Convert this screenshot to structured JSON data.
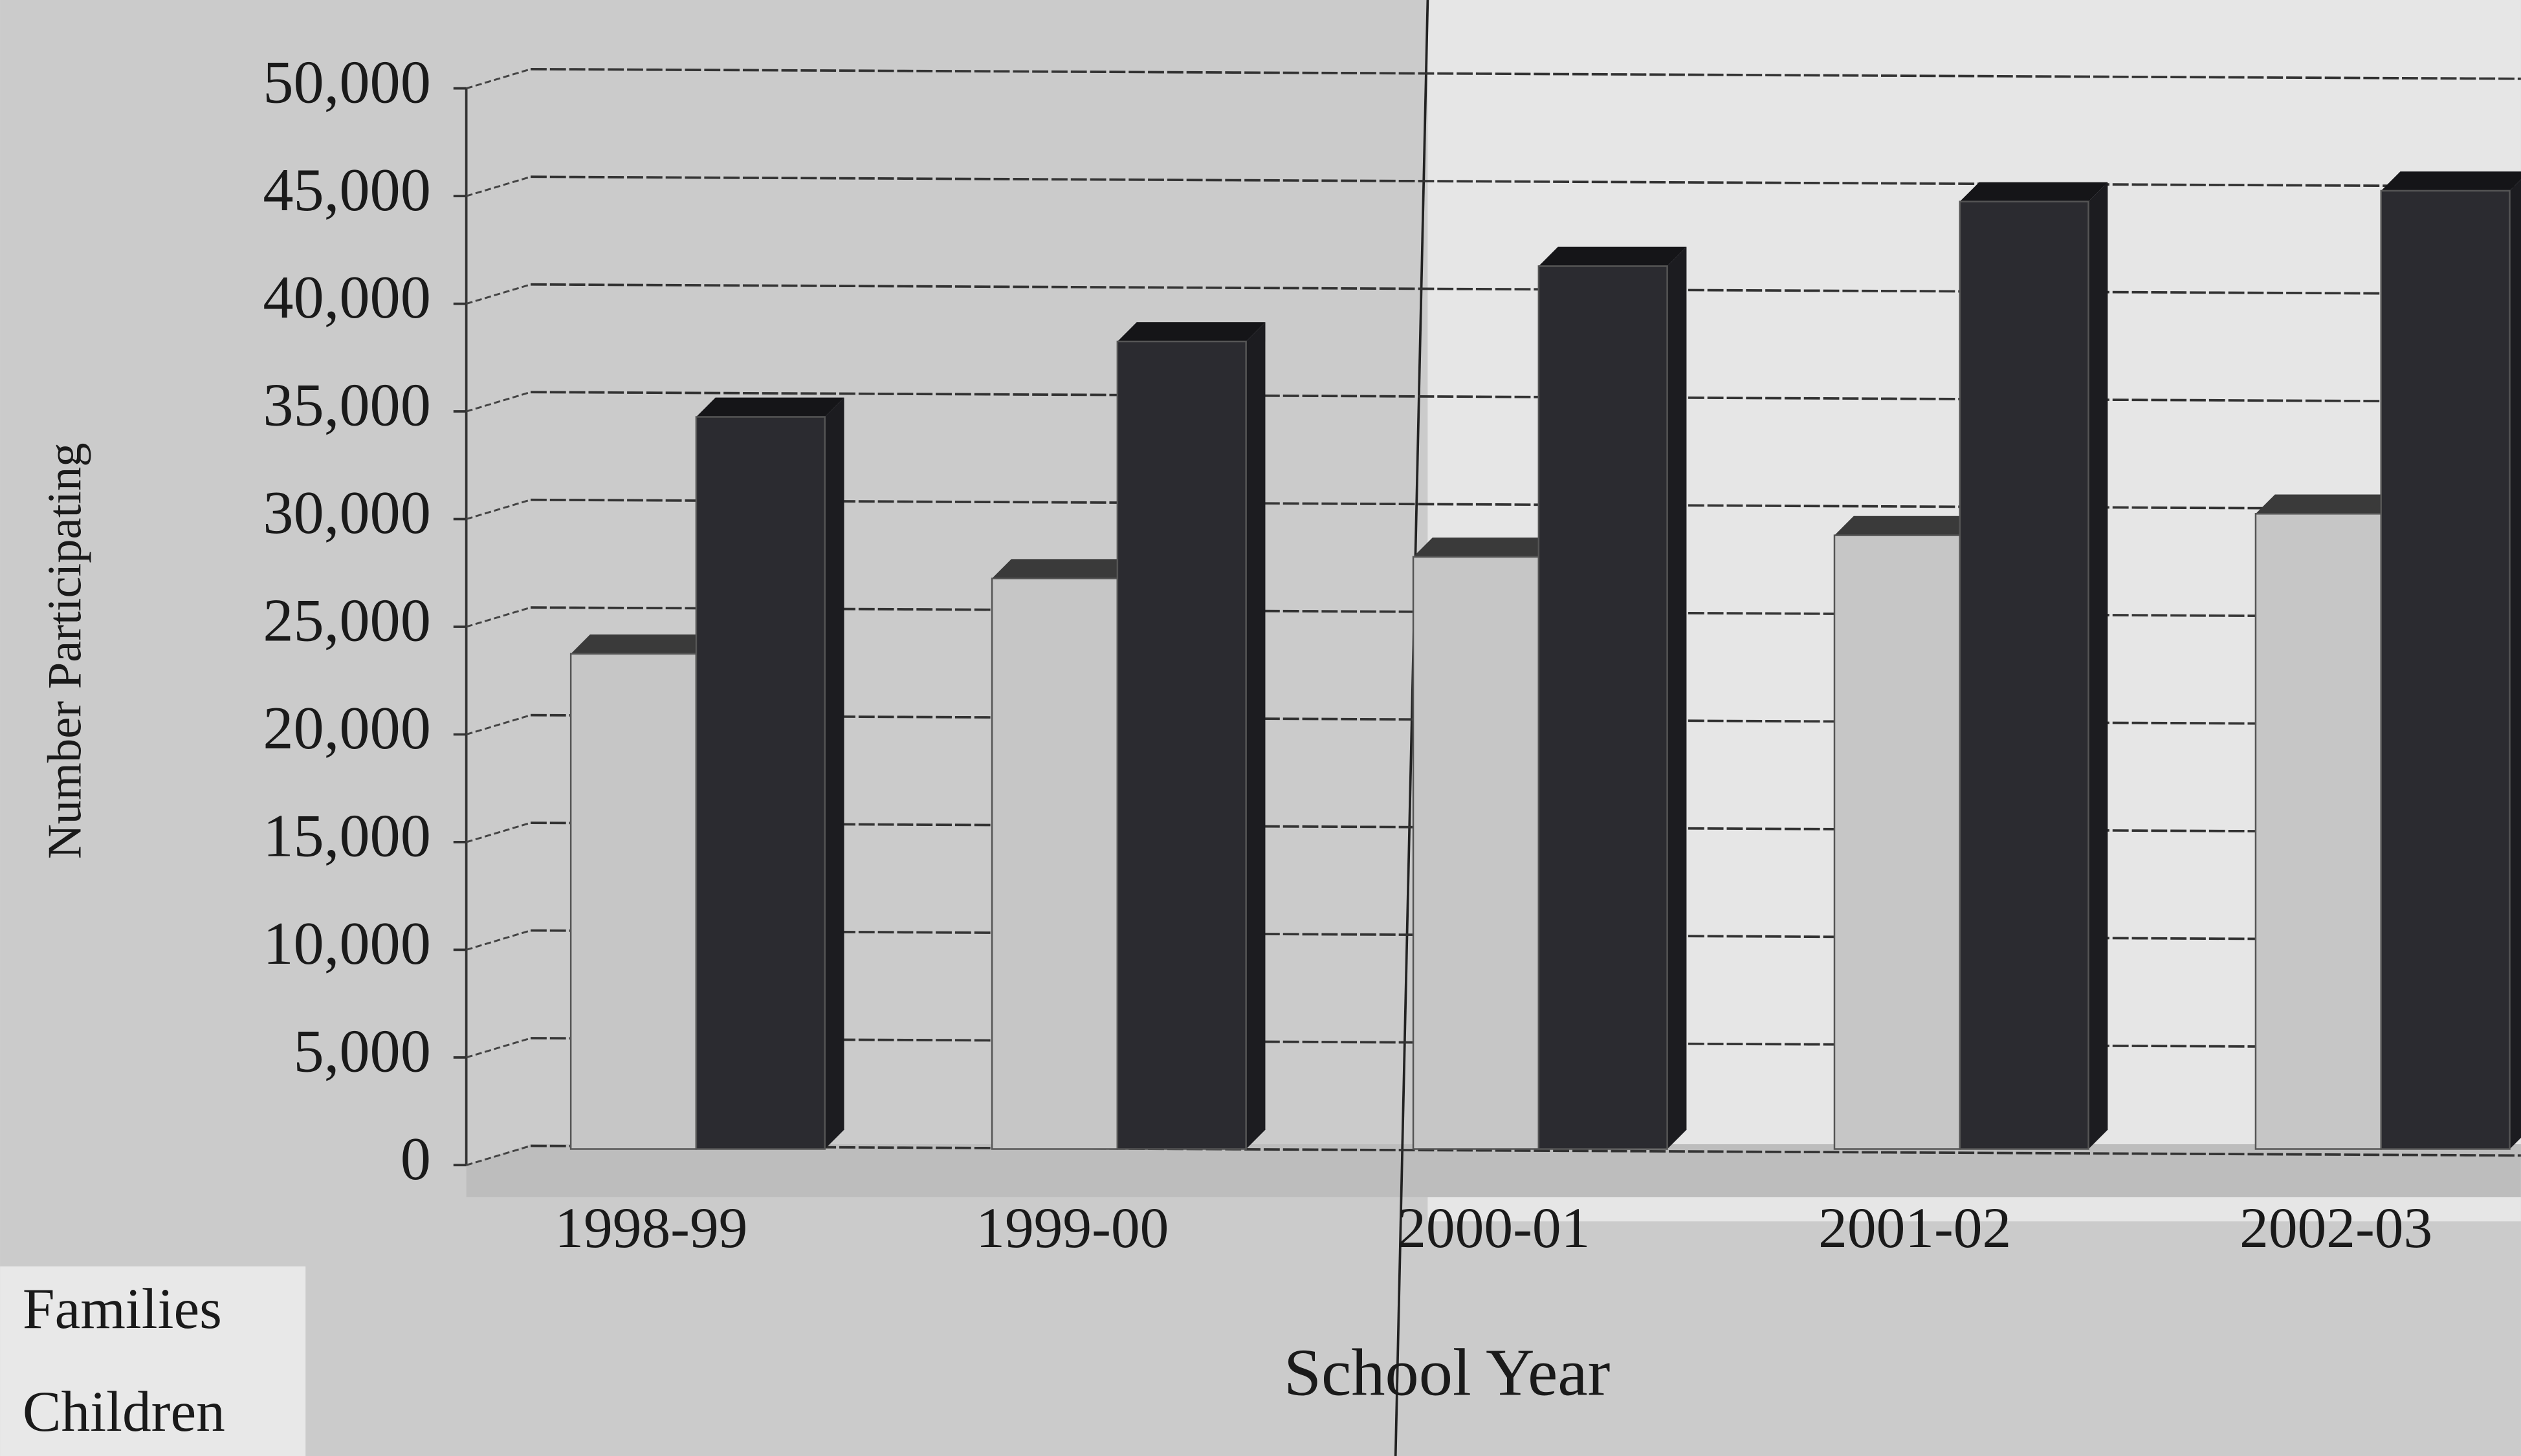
{
  "chart_data": {
    "type": "bar3d",
    "y_label": "Number Participating",
    "x_label": "School Year",
    "categories": [
      "1998-99",
      "1999-00",
      "2000-01",
      "2001-02",
      "2002-03"
    ],
    "series": [
      {
        "name": "Families",
        "color": "#c6c6c6",
        "values": [
          23000,
          26500,
          27500,
          28500,
          29500
        ]
      },
      {
        "name": "Children",
        "color": "#2b2b30",
        "values": [
          34000,
          37500,
          41000,
          44000,
          44500
        ]
      }
    ],
    "ylim": [
      0,
      50000
    ],
    "yticks": [
      0,
      {
        "value": 5000,
        "label": "5,000"
      },
      {
        "value": 10000,
        "label": "10,000"
      },
      {
        "value": 15000,
        "label": "15,000"
      },
      {
        "value": 20000,
        "label": "20,000"
      },
      {
        "value": 25000,
        "label": "25,000"
      },
      {
        "value": 30000,
        "label": "30,000"
      },
      {
        "value": 35000,
        "label": "35,000"
      },
      {
        "value": 40000,
        "label": "40,000"
      },
      {
        "value": 45000,
        "label": "45,000"
      },
      {
        "value": 50000,
        "label": "50,000"
      }
    ],
    "grid": true
  }
}
